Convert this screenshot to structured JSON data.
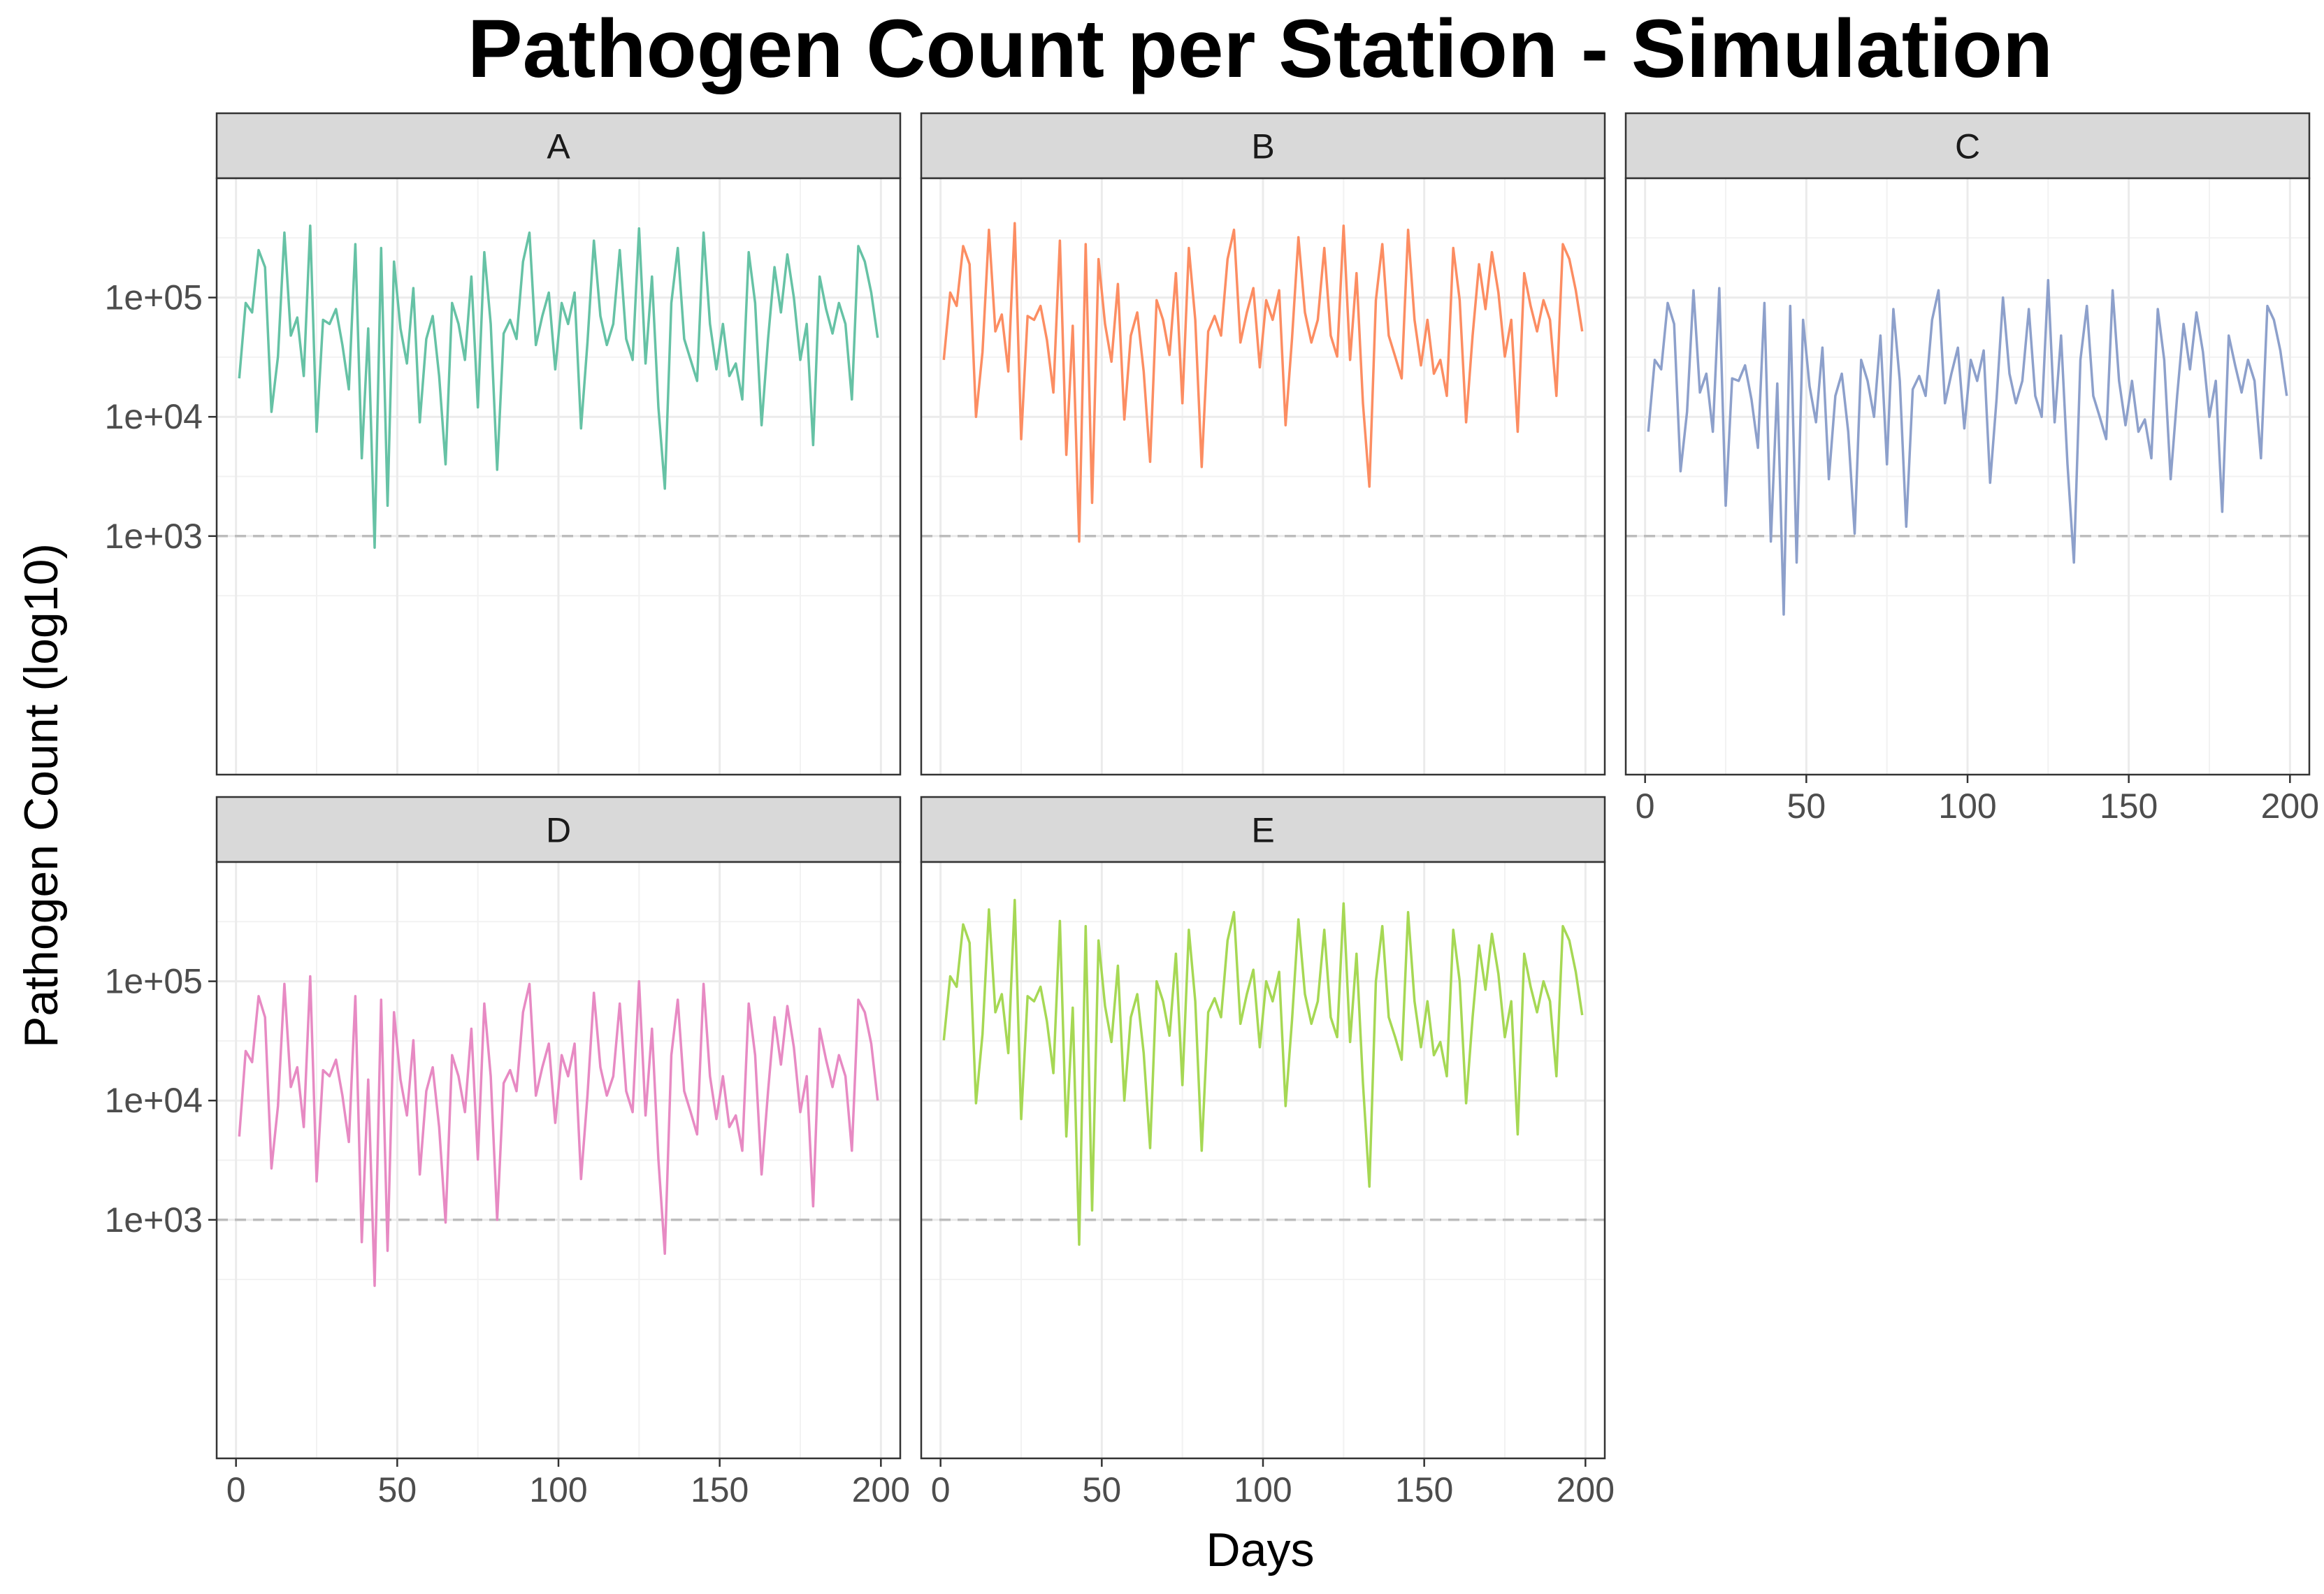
{
  "chart_data": {
    "type": "line",
    "title": "Pathogen Count per Station - Simulation",
    "xlabel": "Days",
    "ylabel": "Pathogen Count (log10)",
    "xlim": [
      -6,
      206
    ],
    "ylim": [
      10,
      1000000
    ],
    "yscale": "log10",
    "x_ticks": [
      0,
      50,
      100,
      150,
      200
    ],
    "y_ticks": [
      1000,
      10000,
      100000
    ],
    "y_tick_labels": [
      "1e+03",
      "1e+04",
      "1e+05"
    ],
    "reference_line": {
      "y": 1000,
      "style": "dashed",
      "color": "#bdbdbd"
    },
    "grid": true,
    "facet_layout": "3 columns x 2 rows, shared axes",
    "colors": {
      "A": "#66c2a5",
      "B": "#fc8d62",
      "C": "#8da0cb",
      "D": "#e78ac3",
      "E": "#a6d854"
    },
    "series": [
      {
        "name": "A",
        "x": [
          1,
          3,
          5,
          7,
          9,
          11,
          13,
          15,
          17,
          19,
          21,
          23,
          25,
          27,
          29,
          31,
          33,
          35,
          37,
          39,
          41,
          43,
          45,
          47,
          49,
          51,
          53,
          55,
          57,
          59,
          61,
          63,
          65,
          67,
          69,
          71,
          73,
          75,
          77,
          79,
          81,
          83,
          85,
          87,
          89,
          91,
          93,
          95,
          97,
          99,
          101,
          103,
          105,
          107,
          109,
          111,
          113,
          115,
          117,
          119,
          121,
          123,
          125,
          127,
          129,
          131,
          133,
          135,
          137,
          139,
          141,
          143,
          145,
          147,
          149,
          151,
          153,
          155,
          157,
          159,
          161,
          163,
          165,
          167,
          169,
          171,
          173,
          175,
          177,
          179,
          181,
          183,
          185,
          187,
          189,
          191,
          193,
          195,
          197,
          199
        ],
        "y": [
          21000,
          90000,
          75000,
          250000,
          180000,
          11000,
          32000,
          350000,
          48000,
          68000,
          22000,
          400000,
          7500,
          65000,
          60000,
          80000,
          40000,
          17000,
          280000,
          4500,
          55000,
          800,
          260000,
          1800,
          200000,
          55000,
          28000,
          120000,
          9000,
          45000,
          70000,
          22000,
          4000,
          90000,
          60000,
          30000,
          150000,
          12000,
          240000,
          60000,
          3600,
          50000,
          65000,
          45000,
          200000,
          350000,
          40000,
          70000,
          110000,
          25000,
          90000,
          60000,
          110000,
          8000,
          42000,
          300000,
          70000,
          40000,
          60000,
          250000,
          45000,
          30000,
          380000,
          28000,
          150000,
          12000,
          2500,
          90000,
          260000,
          45000,
          30000,
          20000,
          350000,
          60000,
          25000,
          60000,
          22000,
          28000,
          14000,
          240000,
          90000,
          8500,
          45000,
          180000,
          75000,
          230000,
          100000,
          30000,
          60000,
          5800,
          150000,
          80000,
          50000,
          90000,
          60000,
          14000,
          270000,
          200000,
          110000,
          46000
        ]
      },
      {
        "name": "B",
        "x": [
          1,
          3,
          5,
          7,
          9,
          11,
          13,
          15,
          17,
          19,
          21,
          23,
          25,
          27,
          29,
          31,
          33,
          35,
          37,
          39,
          41,
          43,
          45,
          47,
          49,
          51,
          53,
          55,
          57,
          59,
          61,
          63,
          65,
          67,
          69,
          71,
          73,
          75,
          77,
          79,
          81,
          83,
          85,
          87,
          89,
          91,
          93,
          95,
          97,
          99,
          101,
          103,
          105,
          107,
          109,
          111,
          113,
          115,
          117,
          119,
          121,
          123,
          125,
          127,
          129,
          131,
          133,
          135,
          137,
          139,
          141,
          143,
          145,
          147,
          149,
          151,
          153,
          155,
          157,
          159,
          161,
          163,
          165,
          167,
          169,
          171,
          173,
          175,
          177,
          179,
          181,
          183,
          185,
          187,
          189,
          191,
          193,
          195,
          197,
          199
        ],
        "y": [
          30000,
          110000,
          85000,
          270000,
          190000,
          10000,
          35000,
          370000,
          52000,
          72000,
          24000,
          420000,
          6500,
          70000,
          65000,
          85000,
          44000,
          16000,
          300000,
          4800,
          58000,
          900,
          280000,
          1900,
          210000,
          60000,
          29000,
          130000,
          9500,
          48000,
          75000,
          24000,
          4200,
          95000,
          65000,
          33000,
          160000,
          13000,
          260000,
          65000,
          3800,
          52000,
          70000,
          48000,
          210000,
          370000,
          42000,
          75000,
          120000,
          26000,
          95000,
          65000,
          115000,
          8500,
          45000,
          320000,
          75000,
          42000,
          65000,
          260000,
          48000,
          32000,
          400000,
          30000,
          160000,
          13000,
          2600,
          95000,
          280000,
          48000,
          32000,
          21000,
          370000,
          65000,
          27000,
          65000,
          23000,
          30000,
          15000,
          260000,
          95000,
          9000,
          48000,
          190000,
          80000,
          240000,
          110000,
          32000,
          65000,
          7500,
          160000,
          85000,
          52000,
          95000,
          65000,
          15000,
          280000,
          210000,
          115000,
          52000
        ]
      },
      {
        "name": "C",
        "x": [
          1,
          3,
          5,
          7,
          9,
          11,
          13,
          15,
          17,
          19,
          21,
          23,
          25,
          27,
          29,
          31,
          33,
          35,
          37,
          39,
          41,
          43,
          45,
          47,
          49,
          51,
          53,
          55,
          57,
          59,
          61,
          63,
          65,
          67,
          69,
          71,
          73,
          75,
          77,
          79,
          81,
          83,
          85,
          87,
          89,
          91,
          93,
          95,
          97,
          99,
          101,
          103,
          105,
          107,
          109,
          111,
          113,
          115,
          117,
          119,
          121,
          123,
          125,
          127,
          129,
          131,
          133,
          135,
          137,
          139,
          141,
          143,
          145,
          147,
          149,
          151,
          153,
          155,
          157,
          159,
          161,
          163,
          165,
          167,
          169,
          171,
          173,
          175,
          177,
          179,
          181,
          183,
          185,
          187,
          189,
          191,
          193,
          195,
          197,
          199
        ],
        "y": [
          7500,
          30000,
          25000,
          90000,
          60000,
          3500,
          11000,
          115000,
          16000,
          23000,
          7500,
          120000,
          1800,
          21000,
          20000,
          27000,
          14000,
          5500,
          90000,
          900,
          19000,
          220,
          85000,
          600,
          65000,
          18000,
          9000,
          38000,
          3000,
          15000,
          23000,
          7500,
          1050,
          30000,
          20000,
          10000,
          48000,
          4000,
          80000,
          20000,
          1200,
          17000,
          22000,
          15000,
          65000,
          115000,
          13000,
          23000,
          38000,
          8000,
          30000,
          20000,
          36000,
          2800,
          14000,
          100000,
          23000,
          13000,
          20000,
          80000,
          15000,
          10000,
          140000,
          9000,
          48000,
          4000,
          600,
          30000,
          85000,
          15000,
          10000,
          6500,
          115000,
          20000,
          8500,
          20000,
          7500,
          9500,
          4500,
          80000,
          30000,
          3000,
          15000,
          60000,
          25000,
          75000,
          35000,
          10000,
          20000,
          1600,
          48000,
          27000,
          16000,
          30000,
          20000,
          4500,
          85000,
          65000,
          36000,
          15000
        ]
      },
      {
        "name": "D",
        "x": [
          1,
          3,
          5,
          7,
          9,
          11,
          13,
          15,
          17,
          19,
          21,
          23,
          25,
          27,
          29,
          31,
          33,
          35,
          37,
          39,
          41,
          43,
          45,
          47,
          49,
          51,
          53,
          55,
          57,
          59,
          61,
          63,
          65,
          67,
          69,
          71,
          73,
          75,
          77,
          79,
          81,
          83,
          85,
          87,
          89,
          91,
          93,
          95,
          97,
          99,
          101,
          103,
          105,
          107,
          109,
          111,
          113,
          115,
          117,
          119,
          121,
          123,
          125,
          127,
          129,
          131,
          133,
          135,
          137,
          139,
          141,
          143,
          145,
          147,
          149,
          151,
          153,
          155,
          157,
          159,
          161,
          163,
          165,
          167,
          169,
          171,
          173,
          175,
          177,
          179,
          181,
          183,
          185,
          187,
          189,
          191,
          193,
          195,
          197,
          199
        ],
        "y": [
          5000,
          26000,
          21000,
          75000,
          50000,
          2700,
          9000,
          95000,
          13000,
          19000,
          6000,
          110000,
          2100,
          18000,
          16000,
          22000,
          11000,
          4500,
          75000,
          650,
          15000,
          280,
          70000,
          550,
          55000,
          15000,
          7500,
          32000,
          2400,
          12000,
          19000,
          6000,
          950,
          24000,
          16000,
          8000,
          40000,
          3200,
          65000,
          16000,
          1000,
          14000,
          18000,
          12000,
          55000,
          95000,
          11000,
          19000,
          30000,
          6500,
          24000,
          16000,
          30000,
          2200,
          11000,
          80000,
          19000,
          11000,
          16000,
          65000,
          12000,
          8000,
          100000,
          7500,
          40000,
          3200,
          520,
          24000,
          70000,
          12000,
          8000,
          5200,
          95000,
          16000,
          7000,
          16000,
          6000,
          7500,
          3800,
          65000,
          24000,
          2400,
          12000,
          50000,
          20000,
          62000,
          28000,
          8000,
          16000,
          1300,
          40000,
          22000,
          13000,
          24000,
          16000,
          3800,
          70000,
          55000,
          30000,
          10000
        ]
      },
      {
        "name": "E",
        "x": [
          1,
          3,
          5,
          7,
          9,
          11,
          13,
          15,
          17,
          19,
          21,
          23,
          25,
          27,
          29,
          31,
          33,
          35,
          37,
          39,
          41,
          43,
          45,
          47,
          49,
          51,
          53,
          55,
          57,
          59,
          61,
          63,
          65,
          67,
          69,
          71,
          73,
          75,
          77,
          79,
          81,
          83,
          85,
          87,
          89,
          91,
          93,
          95,
          97,
          99,
          101,
          103,
          105,
          107,
          109,
          111,
          113,
          115,
          117,
          119,
          121,
          123,
          125,
          127,
          129,
          131,
          133,
          135,
          137,
          139,
          141,
          143,
          145,
          147,
          149,
          151,
          153,
          155,
          157,
          159,
          161,
          163,
          165,
          167,
          169,
          171,
          173,
          175,
          177,
          179,
          181,
          183,
          185,
          187,
          189,
          191,
          193,
          195,
          197,
          199
        ],
        "y": [
          32000,
          110000,
          90000,
          300000,
          210000,
          9500,
          36000,
          400000,
          55000,
          78000,
          25000,
          480000,
          7000,
          75000,
          68000,
          90000,
          46000,
          17000,
          320000,
          5000,
          60000,
          620,
          290000,
          1200,
          220000,
          62000,
          31000,
          135000,
          10000,
          50000,
          78000,
          25000,
          4000,
          100000,
          68000,
          35000,
          170000,
          13500,
          270000,
          68000,
          3800,
          55000,
          72000,
          50000,
          220000,
          380000,
          44000,
          78000,
          125000,
          28000,
          100000,
          68000,
          120000,
          9000,
          47000,
          330000,
          78000,
          44000,
          68000,
          270000,
          50000,
          34000,
          450000,
          31000,
          170000,
          14000,
          1900,
          100000,
          290000,
          50000,
          34000,
          22000,
          380000,
          68000,
          28000,
          68000,
          24000,
          31000,
          16000,
          270000,
          100000,
          9500,
          50000,
          200000,
          85000,
          250000,
          115000,
          34000,
          68000,
          5200,
          170000,
          90000,
          55000,
          100000,
          68000,
          16000,
          290000,
          220000,
          120000,
          52000
        ]
      }
    ]
  }
}
